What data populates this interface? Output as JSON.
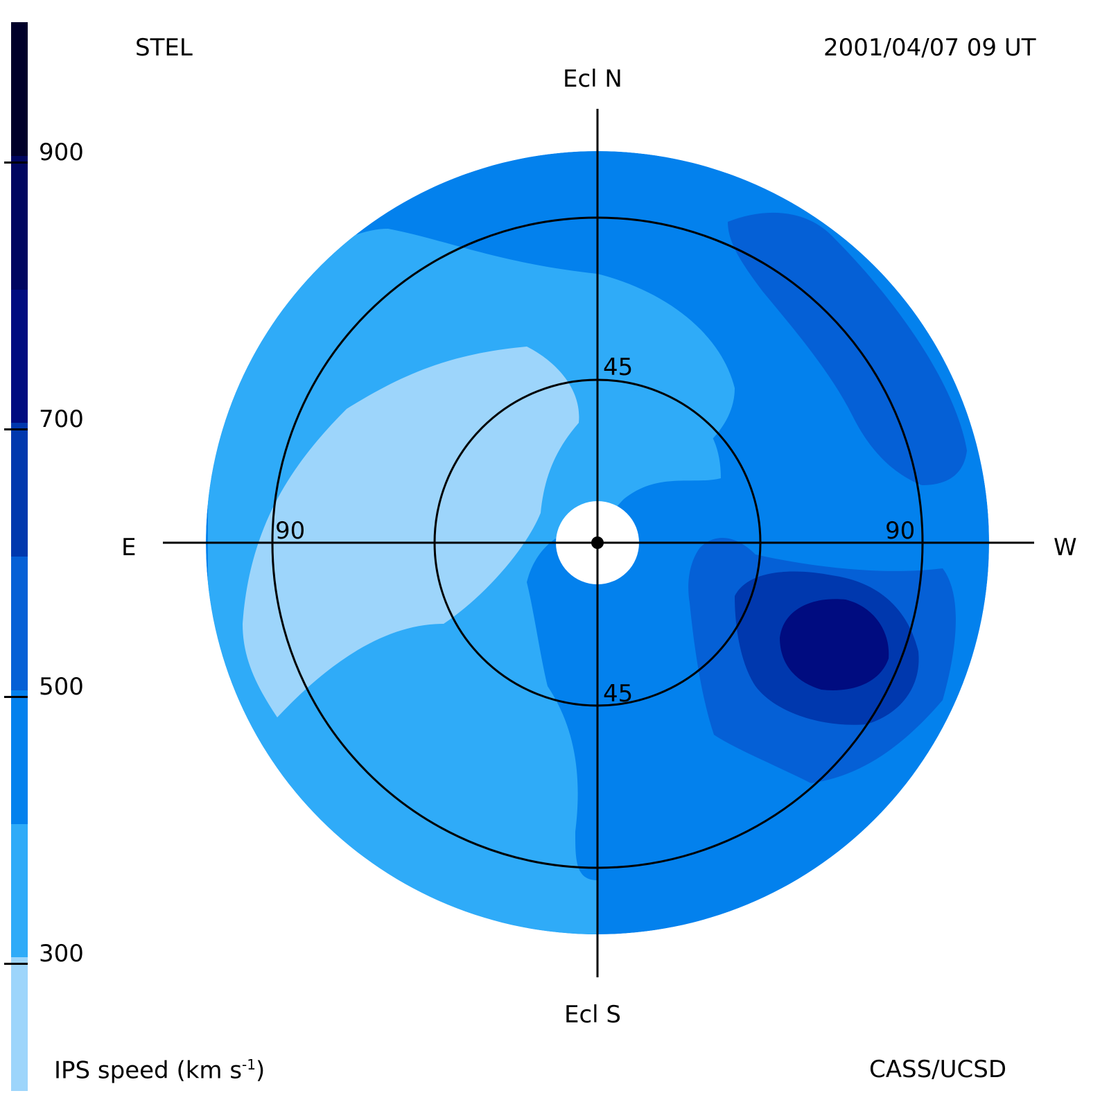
{
  "header": {
    "observatory": "STEL",
    "timestamp": "2001/04/07 09 UT"
  },
  "footer": {
    "colorbar_label": "IPS speed (km s",
    "colorbar_label_exp": "-1",
    "colorbar_label_end": ")",
    "credit": "CASS/UCSD"
  },
  "directions": {
    "north": "Ecl N",
    "south": "Ecl S",
    "east": "E",
    "west": "W"
  },
  "ring_labels": {
    "inner_top": "45",
    "inner_bottom": "45",
    "outer_left": "90",
    "outer_right": "90"
  },
  "colors": {
    "bin_200_300": "#9dd5fb",
    "bin_300_400": "#2fabf8",
    "bin_400_500": "#0381ed",
    "bin_500_600": "#0560d6",
    "bin_600_700": "#0038ae",
    "bin_700_800": "#000c80",
    "bin_800_900": "#000660",
    "bin_900_1000": "#00002a"
  },
  "chart_data": {
    "type": "heatmap",
    "projection": "fisheye sky map centered on the Sun",
    "colorbar": {
      "ticks": [
        {
          "value": 300,
          "label": "300"
        },
        {
          "value": 500,
          "label": "500"
        },
        {
          "value": 700,
          "label": "700"
        },
        {
          "value": 900,
          "label": "900"
        }
      ],
      "range": [
        200,
        1000
      ],
      "bins": [
        {
          "from": 200,
          "to": 300,
          "color": "#9dd5fb"
        },
        {
          "from": 300,
          "to": 400,
          "color": "#2fabf8"
        },
        {
          "from": 400,
          "to": 500,
          "color": "#0381ed"
        },
        {
          "from": 500,
          "to": 600,
          "color": "#0560d6"
        },
        {
          "from": 600,
          "to": 700,
          "color": "#0038ae"
        },
        {
          "from": 700,
          "to": 800,
          "color": "#000c80"
        },
        {
          "from": 800,
          "to": 900,
          "color": "#000660"
        },
        {
          "from": 900,
          "to": 1000,
          "color": "#00002a"
        }
      ]
    },
    "elongation_rings_deg": [
      45,
      90
    ],
    "regions": [
      {
        "name": "background",
        "speed_bin": [
          400,
          500
        ]
      },
      {
        "name": "north-east band",
        "speed_bin": [
          300,
          400
        ]
      },
      {
        "name": "east slow arc",
        "speed_bin": [
          200,
          300
        ]
      },
      {
        "name": "north-west stream",
        "speed_bin": [
          500,
          600
        ]
      },
      {
        "name": "south-west stream",
        "speed_bin": [
          500,
          600
        ]
      },
      {
        "name": "south-west core",
        "speed_bin": [
          600,
          700
        ]
      },
      {
        "name": "south-west peak",
        "speed_bin": [
          700,
          800
        ]
      }
    ]
  }
}
